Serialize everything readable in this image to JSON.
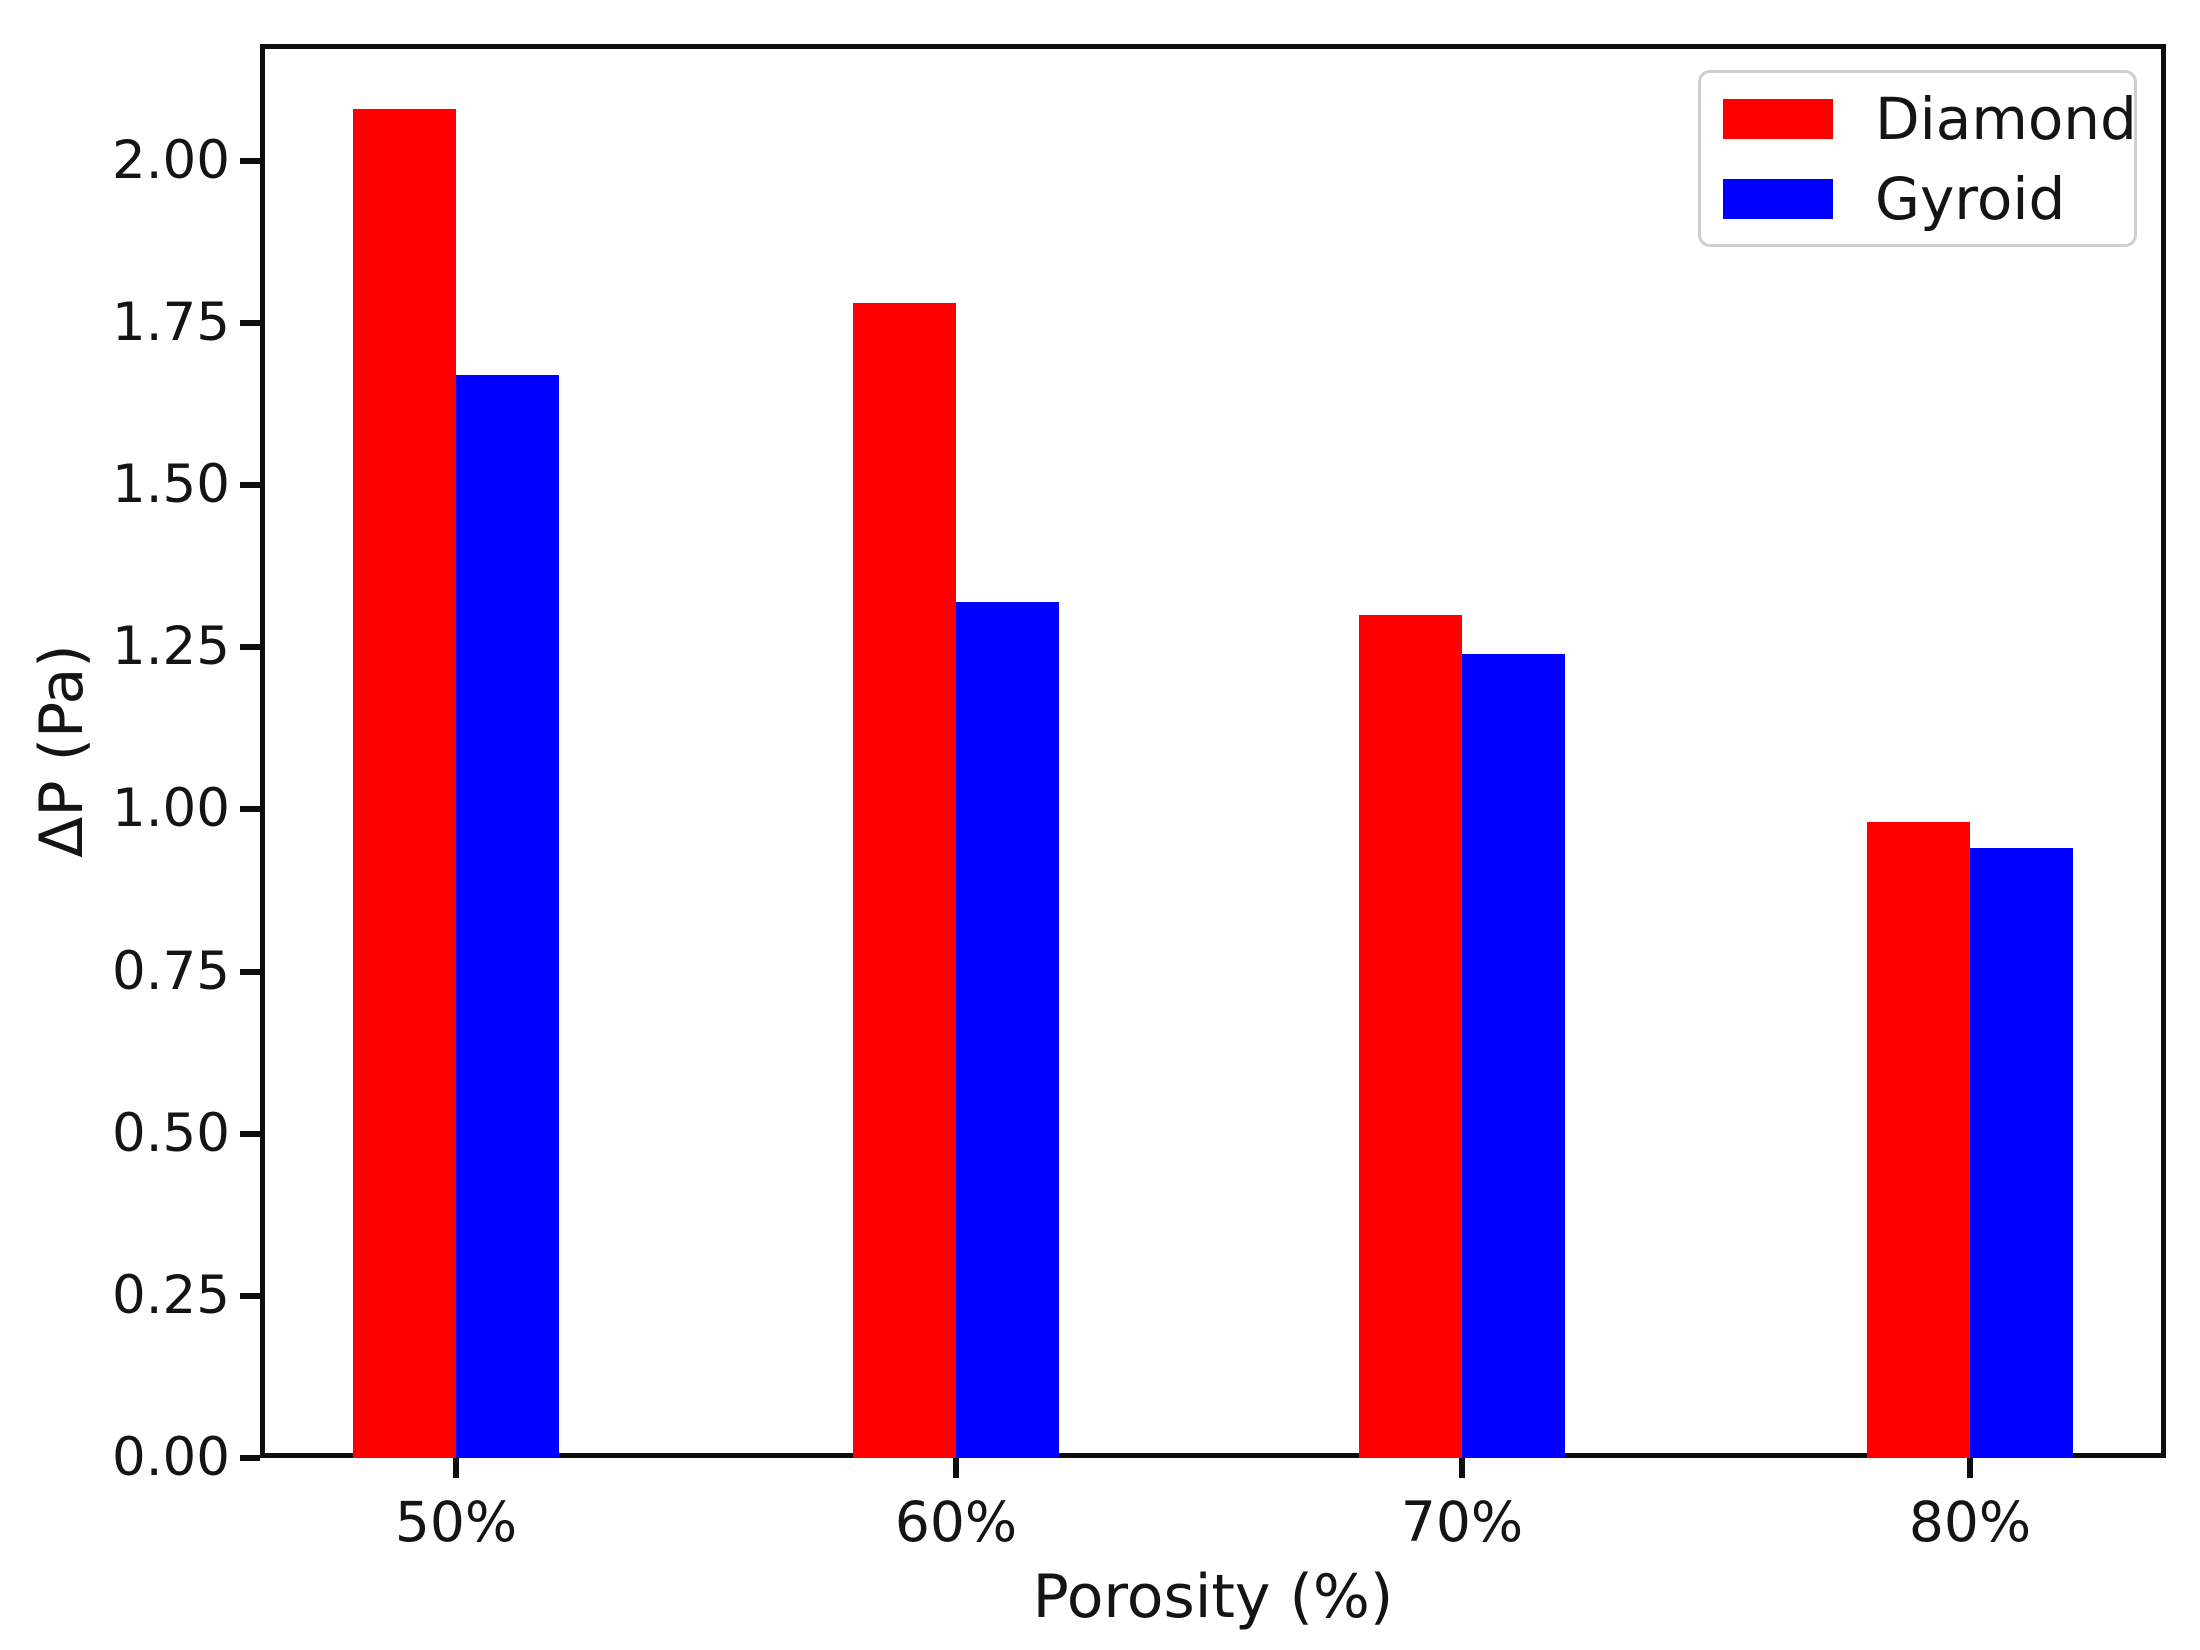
{
  "chart_data": {
    "type": "bar",
    "title": "",
    "xlabel": "Porosity (%)",
    "ylabel": "ΔP (Pa)",
    "categories": [
      "50%",
      "60%",
      "70%",
      "80%"
    ],
    "series": [
      {
        "name": "Diamond",
        "color": "#ff0000",
        "values": [
          2.08,
          1.78,
          1.3,
          0.98
        ]
      },
      {
        "name": "Gyroid",
        "color": "#0000ff",
        "values": [
          1.67,
          1.32,
          1.24,
          0.94
        ]
      }
    ],
    "ylim": [
      0,
      2.18
    ],
    "yticks": [
      0.0,
      0.25,
      0.5,
      0.75,
      1.0,
      1.25,
      1.5,
      1.75,
      2.0
    ],
    "ytick_labels": [
      "0.00",
      "0.25",
      "0.50",
      "0.75",
      "1.00",
      "1.25",
      "1.50",
      "1.75",
      "2.00"
    ],
    "grid": false,
    "legend_position": "upper right",
    "bar_orientation": "vertical"
  }
}
